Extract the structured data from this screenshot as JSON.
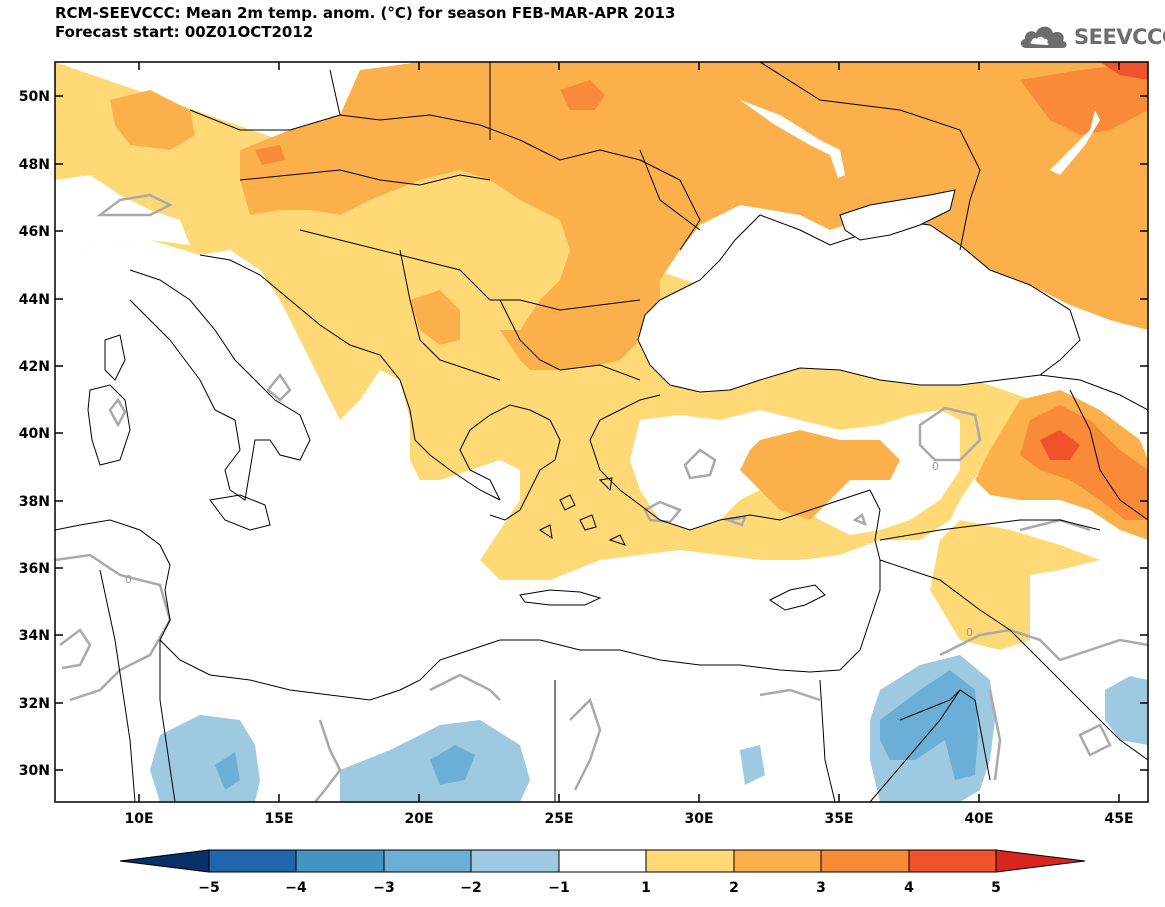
{
  "header": {
    "title_line1": "RCM-SEEVCCC: Mean 2m temp. anom. (°C) for season FEB-MAR-APR 2013",
    "title_line2": "Forecast start: 00Z01OCT2012"
  },
  "logo": {
    "text": "SEEVCCC",
    "icon": "cloud-icon"
  },
  "map": {
    "lon_ticks": [
      "10E",
      "15E",
      "20E",
      "25E",
      "30E",
      "35E",
      "40E",
      "45E"
    ],
    "lat_ticks": [
      "50N",
      "48N",
      "46N",
      "44N",
      "42N",
      "40N",
      "38N",
      "36N",
      "34N",
      "32N",
      "30N"
    ],
    "contour_label": "0",
    "colors": {
      "land_bg": "#ffffff",
      "anom_1_2": "#fed976",
      "anom_2_3": "#fcb04c",
      "anom_3_4": "#f98b38",
      "anom_4_5": "#f0532b",
      "anom_gt5": "#d9261c",
      "anom_m1_m2": "#9ecae1",
      "anom_m2_m3": "#6baed6",
      "contour": "#a9a9a9",
      "border": "#000000"
    }
  },
  "colorbar": {
    "labels": [
      "-5",
      "-4",
      "-3",
      "-2",
      "-1",
      "1",
      "2",
      "3",
      "4",
      "5"
    ],
    "colors": [
      "#08306b",
      "#2166ac",
      "#4393c3",
      "#6baed6",
      "#9ecae1",
      "#ffffff",
      "#fed976",
      "#fcb04c",
      "#f98b38",
      "#f0532b",
      "#d9261c",
      "#b2182b"
    ]
  }
}
